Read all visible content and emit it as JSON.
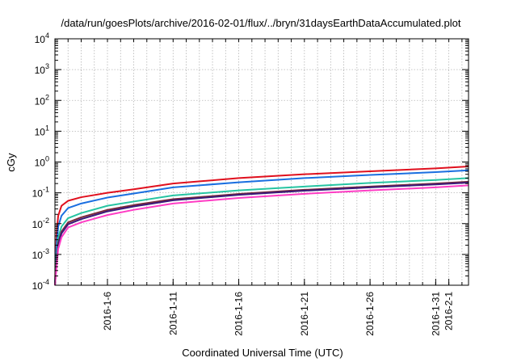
{
  "chart_data": {
    "type": "line",
    "title": "/data/run/goesPlots/archive/2016-02-01/flux/../bryn/31daysEarthDataAccumulated.plot",
    "xlabel": "Coordinated Universal Time (UTC)",
    "ylabel": "cGy",
    "y_scale": "log",
    "ylim": [
      0.0001,
      10000
    ],
    "xlim": [
      "2016-01-02",
      "2016-02-02 12:00"
    ],
    "grid": true,
    "y_ticks": [
      {
        "value": 0.0001,
        "base": "10",
        "exp": "-4"
      },
      {
        "value": 0.001,
        "base": "10",
        "exp": "-3"
      },
      {
        "value": 0.01,
        "base": "10",
        "exp": "-2"
      },
      {
        "value": 0.1,
        "base": "10",
        "exp": "-1"
      },
      {
        "value": 1,
        "base": "10",
        "exp": "0"
      },
      {
        "value": 10,
        "base": "10",
        "exp": "1"
      },
      {
        "value": 100,
        "base": "10",
        "exp": "2"
      },
      {
        "value": 1000,
        "base": "10",
        "exp": "3"
      },
      {
        "value": 10000,
        "base": "10",
        "exp": "4"
      }
    ],
    "x_ticks": [
      {
        "date": "2016-01-06",
        "label": "2016-1-6"
      },
      {
        "date": "2016-01-11",
        "label": "2016-1-11"
      },
      {
        "date": "2016-01-16",
        "label": "2016-1-16"
      },
      {
        "date": "2016-01-21",
        "label": "2016-1-21"
      },
      {
        "date": "2016-01-26",
        "label": "2016-1-26"
      },
      {
        "date": "2016-01-31",
        "label": "2016-1-31"
      },
      {
        "date": "2016-02-01",
        "label": "2016-2-1"
      }
    ],
    "x": [
      "2016-01-02 00:00",
      "2016-01-02 03:00",
      "2016-01-02 06:00",
      "2016-01-02 12:00",
      "2016-01-03",
      "2016-01-04",
      "2016-01-06",
      "2016-01-08",
      "2016-01-11",
      "2016-01-16",
      "2016-01-21",
      "2016-01-26",
      "2016-01-31",
      "2016-02-02 12:00"
    ],
    "series": [
      {
        "color": "#e0101e",
        "values": [
          0.0001,
          0.005,
          0.018,
          0.038,
          0.055,
          0.072,
          0.1,
          0.13,
          0.2,
          0.3,
          0.4,
          0.5,
          0.62,
          0.72
        ]
      },
      {
        "color": "#1a6fe0",
        "values": [
          0.0001,
          0.002,
          0.008,
          0.018,
          0.032,
          0.045,
          0.07,
          0.095,
          0.15,
          0.22,
          0.3,
          0.38,
          0.47,
          0.54
        ]
      },
      {
        "color": "#26c4a2",
        "values": [
          0.0001,
          0.0009,
          0.0035,
          0.008,
          0.015,
          0.022,
          0.038,
          0.052,
          0.082,
          0.12,
          0.16,
          0.21,
          0.26,
          0.3
        ]
      },
      {
        "color": "#7a2a3a",
        "values": [
          0.0001,
          0.0006,
          0.0024,
          0.0055,
          0.011,
          0.016,
          0.028,
          0.04,
          0.062,
          0.092,
          0.125,
          0.16,
          0.2,
          0.23
        ]
      },
      {
        "color": "#3a1a7a",
        "values": [
          0.0001,
          0.0005,
          0.002,
          0.0048,
          0.0095,
          0.014,
          0.025,
          0.036,
          0.057,
          0.086,
          0.117,
          0.15,
          0.187,
          0.215
        ]
      },
      {
        "color": "#ff3cc4",
        "values": [
          0.0001,
          0.0004,
          0.0015,
          0.0036,
          0.0075,
          0.011,
          0.019,
          0.028,
          0.045,
          0.068,
          0.093,
          0.12,
          0.15,
          0.175
        ]
      }
    ]
  }
}
